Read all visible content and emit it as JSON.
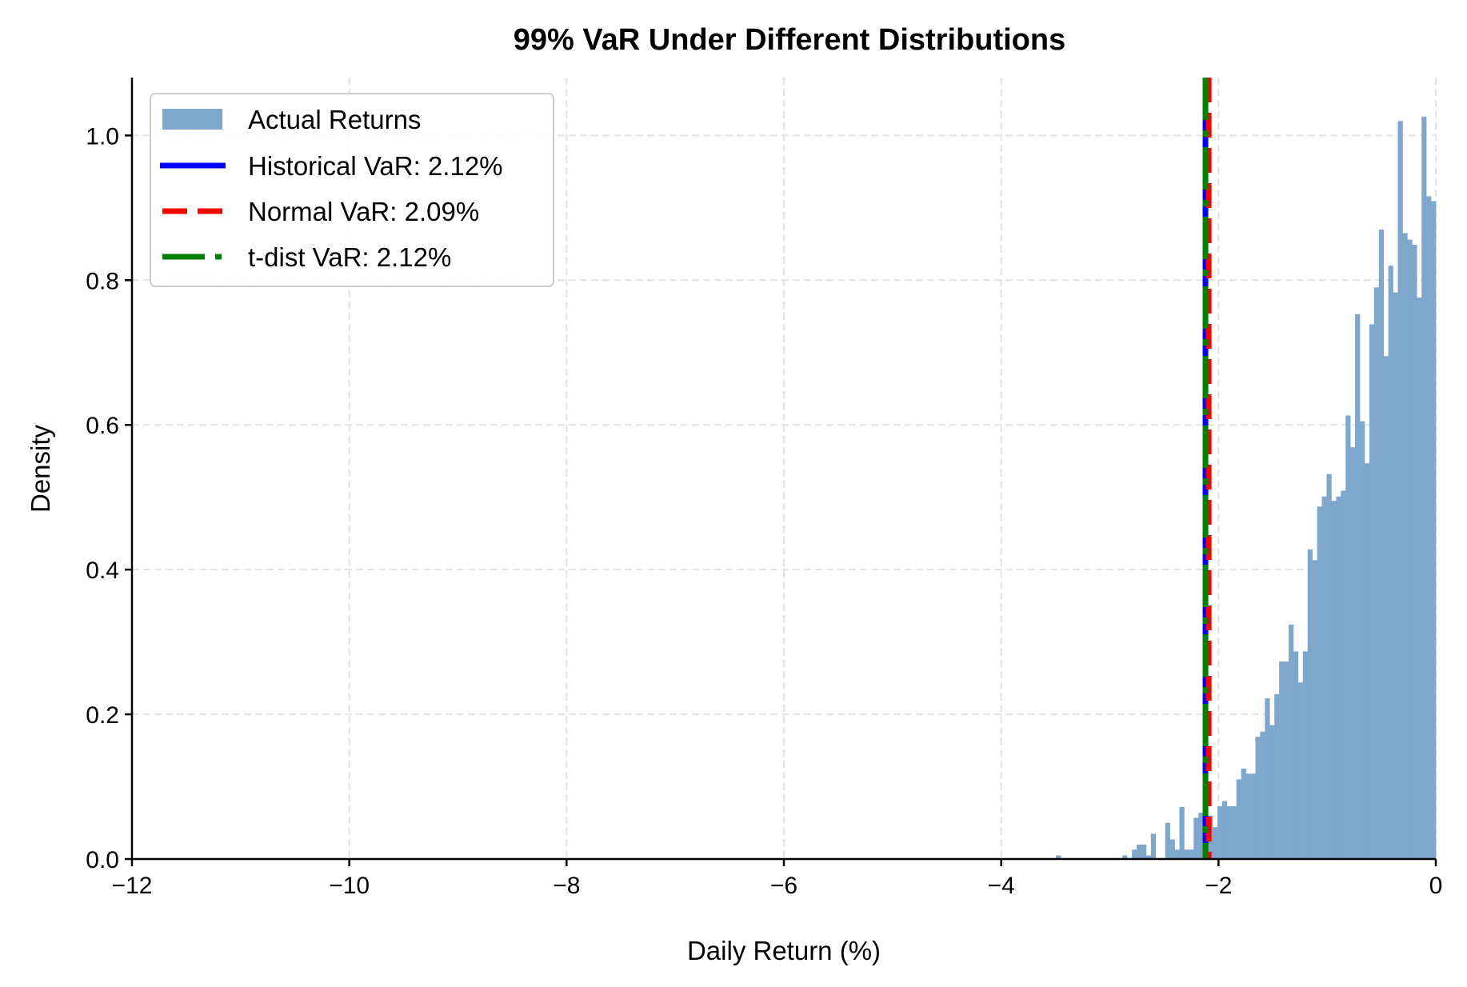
{
  "chart_data": {
    "type": "histogram",
    "title": "99% VaR Under Different Distributions",
    "xlabel": "Daily Return (%)",
    "ylabel": "Density",
    "xlim": [
      -12,
      0
    ],
    "ylim": [
      0,
      1.08
    ],
    "xticks": [
      -12,
      -10,
      -8,
      -6,
      -4,
      -2,
      0
    ],
    "xtick_labels": [
      "−12",
      "−10",
      "−8",
      "−6",
      "−4",
      "−2",
      "0"
    ],
    "yticks": [
      0,
      0.2,
      0.4,
      0.6,
      0.8,
      1.0
    ],
    "ytick_labels": [
      "0.0",
      "0.2",
      "0.4",
      "0.6",
      "0.8",
      "1.0"
    ],
    "grid": true,
    "legend_position": "top-left",
    "histogram": {
      "name": "Actual Returns",
      "color": "#7ea7cb",
      "bin_start": -3.496,
      "bin_width": 0.0437,
      "densities": [
        0.005,
        0,
        0,
        0,
        0,
        0,
        0,
        0,
        0,
        0,
        0,
        0,
        0,
        0,
        0.005,
        0,
        0.013,
        0.02,
        0.02,
        0.005,
        0.035,
        0,
        0,
        0.05,
        0.027,
        0.013,
        0.072,
        0.013,
        0.013,
        0.057,
        0.064,
        0.05,
        0.06,
        0.044,
        0.073,
        0.08,
        0.073,
        0.073,
        0.11,
        0.125,
        0.118,
        0.118,
        0.169,
        0.176,
        0.222,
        0.185,
        0.228,
        0.273,
        0.273,
        0.324,
        0.287,
        0.244,
        0.287,
        0.428,
        0.413,
        0.487,
        0.501,
        0.532,
        0.495,
        0.501,
        0.509,
        0.613,
        0.569,
        0.753,
        0.605,
        0.547,
        0.739,
        0.79,
        0.87,
        0.695,
        0.82,
        0.783,
        1.02,
        0.865,
        0.856,
        0.849,
        0.776,
        1.026,
        0.916,
        0.909
      ]
    },
    "lines": [
      {
        "name": "Historical VaR: 2.12%",
        "x": -2.12,
        "color": "#0000ff",
        "style": "solid"
      },
      {
        "name": "Normal VaR: 2.09%",
        "x": -2.09,
        "color": "#ff0000",
        "style": "dashed"
      },
      {
        "name": "t-dist VaR: 2.12%",
        "x": -2.12,
        "color": "#008000",
        "style": "dashdot"
      }
    ]
  }
}
